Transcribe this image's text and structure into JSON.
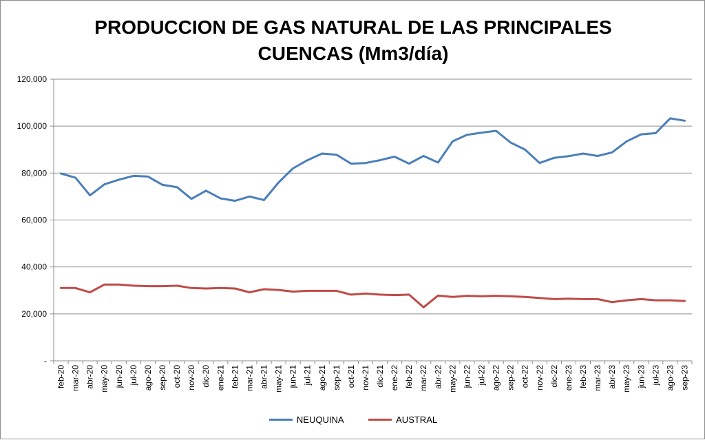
{
  "chart_data": {
    "type": "line",
    "title": "PRODUCCION DE GAS NATURAL DE LAS PRINCIPALES\nCUENCAS (Mm3/día)",
    "xlabel": "",
    "ylabel": "",
    "ylim": [
      0,
      120000
    ],
    "yticks": [
      "-",
      "20,000",
      "40,000",
      "60,000",
      "80,000",
      "100,000",
      "120,000"
    ],
    "grid": true,
    "legend_position": "bottom",
    "categories": [
      "feb-20",
      "mar-20",
      "abr-20",
      "may-20",
      "jun-20",
      "jul-20",
      "ago-20",
      "sep-20",
      "oct-20",
      "nov-20",
      "dic-20",
      "ene-21",
      "feb-21",
      "mar-21",
      "abr-21",
      "may-21",
      "jun-21",
      "jul-21",
      "ago-21",
      "sep-21",
      "oct-21",
      "nov-21",
      "dic-21",
      "ene-22",
      "feb-22",
      "mar-22",
      "abr-22",
      "may-22",
      "jun-22",
      "jul-22",
      "ago-22",
      "sep-22",
      "oct-22",
      "nov-22",
      "dic-22",
      "ene-23",
      "feb-23",
      "mar-23",
      "abr-23",
      "may-23",
      "jun-23",
      "jul-23",
      "ago-23",
      "sep-23"
    ],
    "series": [
      {
        "name": "NEUQUINA",
        "color": "#4a7ebb",
        "values": [
          79800,
          78000,
          70500,
          75200,
          77200,
          78800,
          78500,
          75000,
          74000,
          69000,
          72500,
          69200,
          68200,
          70000,
          68500,
          76000,
          82000,
          85500,
          88300,
          87800,
          84000,
          84300,
          85500,
          87000,
          84000,
          87300,
          84500,
          93500,
          96300,
          97200,
          98000,
          93000,
          90000,
          84300,
          86500,
          87200,
          88300,
          87300,
          88800,
          93500,
          96500,
          97000,
          103300,
          102300
        ]
      },
      {
        "name": "AUSTRAL",
        "color": "#be4b48",
        "values": [
          31000,
          31000,
          29200,
          32500,
          32500,
          32000,
          31800,
          31800,
          32000,
          31000,
          30800,
          31000,
          30800,
          29200,
          30500,
          30200,
          29500,
          29800,
          29800,
          29800,
          28200,
          28700,
          28200,
          28000,
          28200,
          22800,
          27800,
          27200,
          27700,
          27500,
          27700,
          27500,
          27200,
          26800,
          26300,
          26500,
          26300,
          26300,
          25000,
          25800,
          26300,
          25800,
          25800,
          25500
        ]
      }
    ]
  }
}
